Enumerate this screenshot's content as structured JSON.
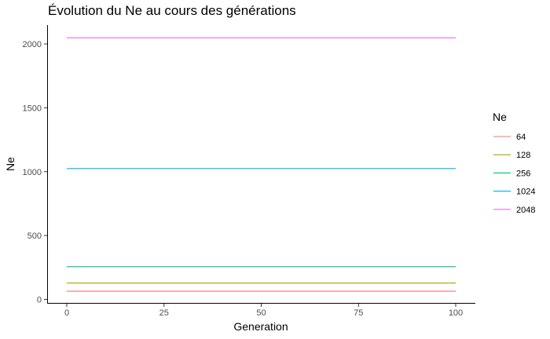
{
  "chart_data": {
    "type": "line",
    "title": "Évolution du Ne au cours des générations",
    "xlabel": "Generation",
    "ylabel": "Ne",
    "xlim": [
      0,
      100
    ],
    "ylim": [
      0,
      2048
    ],
    "x_ticks": [
      0,
      25,
      50,
      75,
      100
    ],
    "y_ticks": [
      0,
      500,
      1000,
      1500,
      2000
    ],
    "grid": false,
    "legend": {
      "title": "Ne",
      "position": "right"
    },
    "x": [
      0,
      100
    ],
    "series": [
      {
        "name": "64",
        "color": "#F8766D",
        "values": [
          64,
          64
        ]
      },
      {
        "name": "128",
        "color": "#A3A500",
        "values": [
          128,
          128
        ]
      },
      {
        "name": "256",
        "color": "#00BF7D",
        "values": [
          256,
          256
        ]
      },
      {
        "name": "1024",
        "color": "#00B0F6",
        "values": [
          1024,
          1024
        ]
      },
      {
        "name": "2048",
        "color": "#E76BF3",
        "values": [
          2048,
          2048
        ]
      }
    ]
  }
}
